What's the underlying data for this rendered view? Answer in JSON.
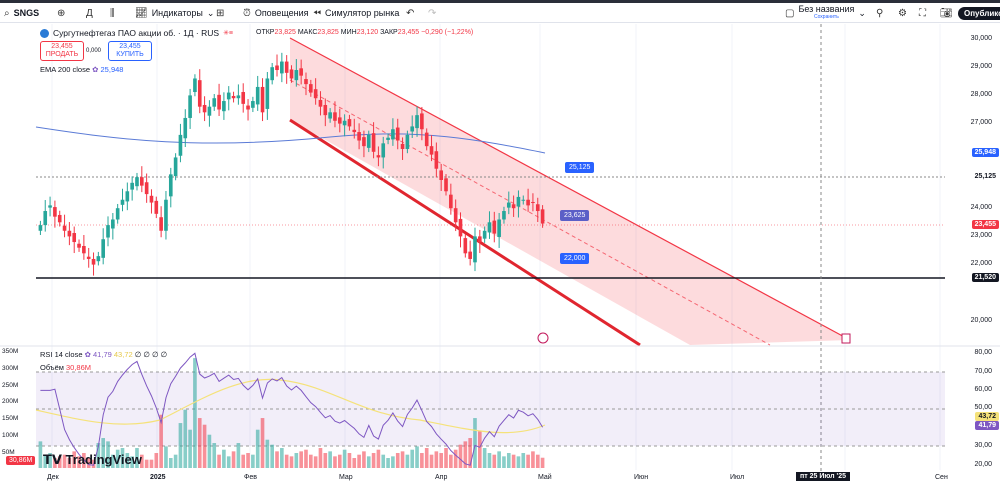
{
  "toolbar": {
    "symbol": "SNGS",
    "indicators": "Индикаторы",
    "alerts": "Оповещения",
    "replay": "Симулятор рынка",
    "layout_name": "Без названия",
    "save": "Сохранить",
    "publish": "Опубликовать"
  },
  "legend": {
    "title": "Сургутнефтегаз ПАО акции об. · 1Д · RUS",
    "open_label": "ОТКР",
    "open": "23,825",
    "high_label": "МАКС",
    "high": "23,825",
    "low_label": "МИН",
    "low": "23,120",
    "close_label": "ЗАКР",
    "close": "23,455",
    "change": "−0,290 (−1,22%)",
    "sell_price": "23,455",
    "sell_label": "ПРОДАТЬ",
    "spread": "0,000",
    "buy_price": "23,455",
    "buy_label": "КУПИТЬ",
    "ema_label": "EMA 200 close",
    "ema_value": "25,948"
  },
  "price_axis": [
    "30,000",
    "29,000",
    "28,000",
    "27,000",
    "26,000",
    "24,000",
    "23,000",
    "22,000",
    "20,000"
  ],
  "price_tags": {
    "ema": "25,948",
    "level": "25,125",
    "last": "23,455",
    "support": "21,520"
  },
  "annotations": {
    "upper": "25,125",
    "mid": "23,625",
    "lower": "22,000"
  },
  "rsi": {
    "label": "RSI 14 close",
    "value": "41,79",
    "ma": "43,72",
    "extra": "∅ ∅ ∅ ∅",
    "axis": [
      "80,00",
      "70,00",
      "60,00",
      "50,00",
      "30,00",
      "20,00"
    ]
  },
  "volume": {
    "label": "Объём",
    "value": "30,86M",
    "axis": [
      "350M",
      "300M",
      "250M",
      "200M",
      "150M",
      "100M",
      "50M"
    ]
  },
  "time_axis": [
    "Дек",
    "2025",
    "Фев",
    "Мар",
    "Апр",
    "Май",
    "Июн",
    "Июл",
    "Сен"
  ],
  "crosshair_date": "пт 25 Июл '25",
  "brand": "TradingView",
  "colors": {
    "up": "#26a69a",
    "down": "#f23645",
    "ema": "#2962ff",
    "rsi": "#7e57c2",
    "rsi_ma": "#f5e27a",
    "channel": "#f23645"
  },
  "chart_data": {
    "type": "candlestick",
    "closes": [
      23.4,
      23.9,
      24.1,
      23.7,
      23.5,
      23.2,
      23.0,
      22.8,
      22.6,
      22.4,
      22.2,
      22.0,
      22.3,
      22.9,
      23.4,
      23.6,
      24.0,
      24.3,
      24.6,
      24.9,
      25.1,
      24.8,
      24.5,
      24.2,
      23.8,
      23.2,
      24.3,
      25.2,
      25.8,
      26.6,
      27.2,
      28.0,
      28.6,
      27.6,
      27.4,
      27.6,
      27.9,
      27.5,
      27.8,
      28.1,
      27.9,
      28.0,
      27.7,
      27.5,
      27.8,
      28.3,
      27.4,
      28.6,
      29.0,
      28.9,
      29.2,
      28.8,
      28.6,
      28.9,
      28.7,
      28.4,
      28.1,
      27.9,
      27.6,
      27.3,
      27.4,
      27.1,
      27.0,
      27.1,
      26.9,
      26.7,
      26.4,
      26.2,
      26.6,
      26.0,
      25.8,
      26.3,
      26.5,
      26.8,
      26.4,
      26.1,
      26.6,
      26.9,
      27.3,
      26.8,
      26.2,
      25.9,
      25.4,
      25.0,
      24.6,
      24.0,
      23.5,
      23.0,
      22.4,
      22.2,
      23.0,
      22.8,
      23.2,
      23.5,
      23.1,
      23.6,
      23.9,
      24.2,
      24.0,
      24.4,
      24.3,
      24.1,
      24.2,
      23.9,
      23.455
    ],
    "volumes_m": [
      80,
      40,
      45,
      30,
      35,
      40,
      30,
      50,
      35,
      45,
      30,
      25,
      75,
      90,
      80,
      40,
      55,
      60,
      45,
      35,
      60,
      40,
      25,
      25,
      45,
      160,
      65,
      30,
      40,
      135,
      175,
      115,
      330,
      150,
      130,
      100,
      75,
      40,
      55,
      35,
      50,
      75,
      40,
      45,
      40,
      115,
      150,
      85,
      70,
      50,
      60,
      40,
      35,
      45,
      50,
      55,
      40,
      35,
      60,
      45,
      50,
      35,
      40,
      55,
      45,
      30,
      40,
      50,
      35,
      45,
      55,
      40,
      30,
      35,
      45,
      50,
      40,
      55,
      65,
      45,
      60,
      40,
      50,
      45,
      60,
      40,
      55,
      70,
      80,
      90,
      150,
      110,
      60,
      45,
      40,
      50,
      35,
      45,
      40,
      35,
      45,
      40,
      50,
      40,
      30.86
    ],
    "ylim": [
      20,
      30
    ]
  }
}
